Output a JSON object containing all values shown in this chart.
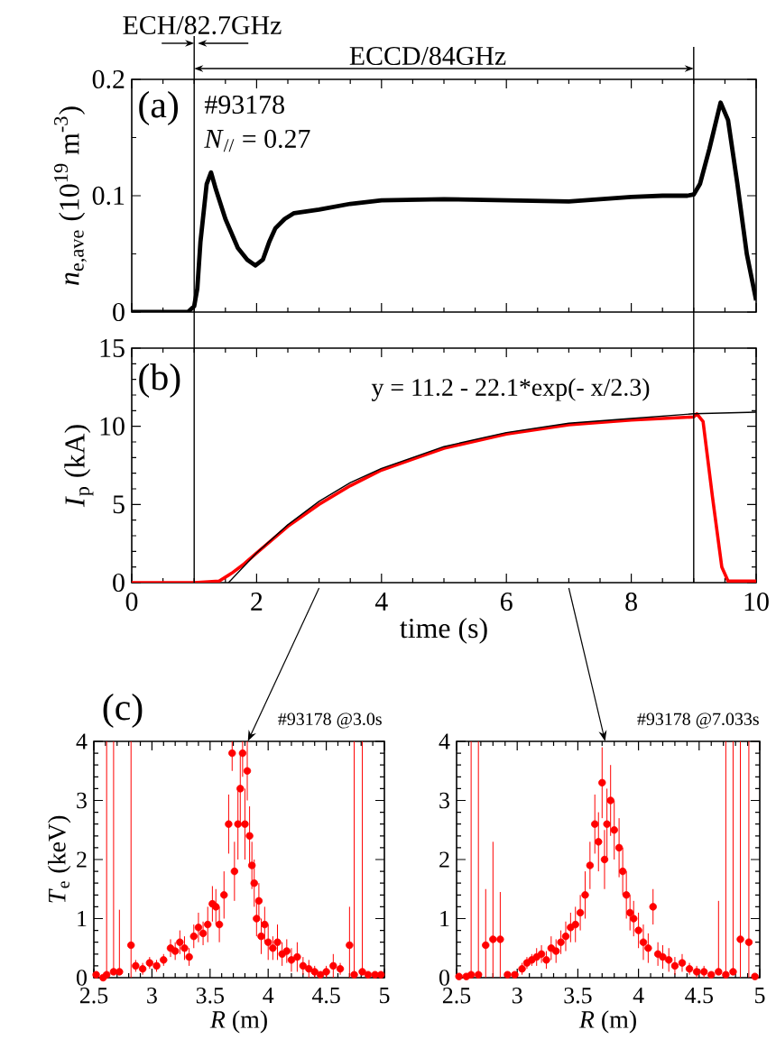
{
  "chart_data": [
    {
      "type": "line",
      "ylabel": "*n*$_{e,ave}$ (10$^{19}$ m$^{-3}$)",
      "color": "#000000",
      "x": [
        0,
        0.5,
        0.9,
        1.0,
        1.05,
        1.1,
        1.2,
        1.27,
        1.35,
        1.5,
        1.7,
        1.85,
        1.98,
        2.1,
        2.2,
        2.3,
        2.45,
        2.6,
        3.0,
        3.5,
        4.0,
        5.0,
        6.0,
        7.0,
        7.5,
        8.0,
        8.5,
        8.9,
        9.0,
        9.1,
        9.25,
        9.43,
        9.55,
        9.7,
        9.85,
        10
      ],
      "values": [
        0,
        0,
        0,
        0.005,
        0.02,
        0.06,
        0.11,
        0.12,
        0.105,
        0.08,
        0.055,
        0.045,
        0.04,
        0.045,
        0.06,
        0.072,
        0.08,
        0.085,
        0.088,
        0.093,
        0.096,
        0.097,
        0.096,
        0.095,
        0.097,
        0.099,
        0.1,
        0.1,
        0.101,
        0.11,
        0.14,
        0.18,
        0.165,
        0.11,
        0.05,
        0.01
      ],
      "xlim": [
        0,
        10
      ],
      "ylim": [
        0,
        0.2
      ],
      "xticks": [
        0,
        2,
        4,
        6,
        8,
        10
      ],
      "yticks": [
        0,
        0.1,
        0.2
      ],
      "tick_labels": "y",
      "ref_lines": [
        {
          "axis": "x",
          "value": 1
        },
        {
          "axis": "x",
          "value": 9
        }
      ],
      "annotations": [
        "ECH/82.7GHz",
        "ECCD/84GHz",
        "(a)",
        "#93178",
        "*N*$_{//}$ = 0.27"
      ]
    },
    {
      "type": "line",
      "xlabel": "time (s)",
      "ylabel": "*I*$_{p}$ (kA)",
      "series": [
        {
          "color": "#ff0000",
          "x": [
            0,
            0.5,
            1.0,
            1.4,
            1.6,
            1.8,
            2.0,
            2.5,
            3.0,
            3.5,
            4.0,
            5.0,
            6.0,
            7.0,
            8.0,
            9.0,
            9.05,
            9.15,
            9.3,
            9.45,
            9.55,
            9.7,
            10
          ],
          "values": [
            0,
            0,
            0,
            0.1,
            0.6,
            1.2,
            1.9,
            3.6,
            5.0,
            6.2,
            7.2,
            8.6,
            9.5,
            10.1,
            10.4,
            10.6,
            10.8,
            10.3,
            5.5,
            1.0,
            0.1,
            0.1,
            0.1
          ]
        },
        {
          "color": "#000000",
          "x": [
            1.55,
            2,
            2.5,
            3,
            3.5,
            4,
            5,
            6,
            7,
            8,
            9,
            10
          ],
          "values": [
            0,
            1.9,
            3.7,
            5.2,
            6.4,
            7.3,
            8.7,
            9.6,
            10.2,
            10.5,
            10.8,
            10.9
          ]
        }
      ],
      "xlim": [
        0,
        10
      ],
      "ylim": [
        0,
        15
      ],
      "xticks": [
        0,
        2,
        4,
        6,
        8,
        10
      ],
      "yticks": [
        0,
        5,
        10,
        15
      ],
      "ref_lines": [
        {
          "axis": "x",
          "value": 1
        },
        {
          "axis": "x",
          "value": 9
        }
      ],
      "annotations": [
        "(b)",
        "y = 11.2 - 22.1*exp(- x/2.3)"
      ]
    },
    {
      "type": "scatter",
      "xlabel": "*R* (m)",
      "ylabel": "*T*$_{e}$ (keV)",
      "color": "#ff0000",
      "marker": "circle",
      "x": [
        2.52,
        2.58,
        2.61,
        2.67,
        2.72,
        2.82,
        2.86,
        2.92,
        2.98,
        3.04,
        3.1,
        3.16,
        3.2,
        3.24,
        3.28,
        3.32,
        3.36,
        3.4,
        3.44,
        3.48,
        3.52,
        3.55,
        3.58,
        3.62,
        3.66,
        3.69,
        3.71,
        3.74,
        3.76,
        3.78,
        3.8,
        3.82,
        3.84,
        3.86,
        3.88,
        3.9,
        3.92,
        3.94,
        3.97,
        4.0,
        4.04,
        4.08,
        4.12,
        4.16,
        4.2,
        4.25,
        4.3,
        4.35,
        4.4,
        4.45,
        4.5,
        4.56,
        4.62,
        4.7,
        4.74,
        4.81,
        4.86,
        4.92,
        4.97
      ],
      "values": [
        0.05,
        0,
        0.05,
        0.1,
        0.1,
        0.55,
        0.2,
        0.15,
        0.25,
        0.2,
        0.3,
        0.5,
        0.45,
        0.6,
        0.5,
        0.35,
        0.7,
        0.85,
        0.75,
        0.9,
        1.25,
        1.2,
        0.9,
        1.4,
        2.6,
        3.8,
        1.8,
        2.6,
        3.2,
        3.8,
        2.6,
        3.5,
        2.4,
        1.9,
        1.6,
        1.0,
        1.3,
        0.7,
        0.9,
        0.6,
        0.5,
        0.6,
        0.4,
        0.45,
        0.3,
        0.35,
        0.2,
        0.15,
        0.1,
        0.05,
        0.1,
        0.2,
        0.15,
        0.55,
        0.05,
        0.1,
        0.05,
        0.05,
        0.05
      ],
      "errors": [
        null,
        null,
        [
          0.05,
          4
        ],
        [
          0.1,
          4
        ],
        [
          0.1,
          1.15
        ],
        [
          0,
          4
        ],
        0.1,
        0.1,
        0.1,
        0.1,
        0.1,
        0.15,
        0.15,
        0.2,
        0.2,
        0.15,
        0.2,
        0.25,
        0.2,
        0.3,
        0.3,
        0.3,
        0.3,
        0.4,
        0.5,
        [
          3.5,
          4
        ],
        0.5,
        0.6,
        0.6,
        [
          3.4,
          4
        ],
        0.6,
        0.5,
        0.5,
        0.4,
        0.4,
        0.3,
        0.3,
        0.3,
        0.3,
        0.3,
        0.2,
        0.3,
        0.2,
        0.2,
        0.2,
        0.25,
        0.15,
        0.15,
        0.1,
        null,
        0.1,
        0.2,
        0.1,
        [
          0,
          1.2
        ],
        [
          0.05,
          4
        ],
        [
          0.1,
          4
        ],
        null,
        null,
        null
      ],
      "xlim": [
        2.5,
        5
      ],
      "ylim": [
        0,
        4
      ],
      "xticks": [
        2.5,
        3,
        3.5,
        4,
        4.5,
        5
      ],
      "yticks": [
        0,
        1,
        2,
        3,
        4
      ],
      "annotations": [
        "(c)",
        "#93178 @3.0s"
      ]
    },
    {
      "type": "scatter",
      "xlabel": "*R* (m)",
      "color": "#ff0000",
      "marker": "circle",
      "x": [
        2.52,
        2.58,
        2.62,
        2.68,
        2.74,
        2.8,
        2.86,
        2.92,
        2.98,
        3.04,
        3.08,
        3.12,
        3.16,
        3.2,
        3.24,
        3.28,
        3.32,
        3.36,
        3.4,
        3.44,
        3.48,
        3.52,
        3.56,
        3.6,
        3.64,
        3.67,
        3.7,
        3.72,
        3.74,
        3.77,
        3.8,
        3.84,
        3.87,
        3.9,
        3.93,
        3.96,
        4.0,
        4.04,
        4.08,
        4.12,
        4.16,
        4.2,
        4.25,
        4.3,
        4.36,
        4.42,
        4.48,
        4.54,
        4.6,
        4.66,
        4.72,
        4.78,
        4.84,
        4.91,
        4.96
      ],
      "values": [
        0.02,
        0.02,
        0.05,
        0.05,
        0.55,
        0.65,
        0.65,
        0.05,
        0.05,
        0.15,
        0.25,
        0.3,
        0.35,
        0.4,
        0.3,
        0.5,
        0.45,
        0.6,
        0.7,
        0.85,
        0.9,
        1.1,
        1.4,
        1.9,
        2.6,
        2.3,
        3.3,
        2.0,
        2.6,
        3.0,
        2.5,
        2.2,
        1.8,
        1.4,
        1.1,
        1.0,
        0.8,
        0.6,
        0.5,
        1.2,
        0.4,
        0.35,
        0.3,
        0.2,
        0.25,
        0.15,
        0.1,
        0.1,
        0.05,
        0.1,
        0.05,
        0.1,
        0.65,
        0.6,
        0.02
      ],
      "errors": [
        null,
        null,
        [
          0.05,
          4
        ],
        [
          0.05,
          4
        ],
        [
          0,
          1.5
        ],
        [
          0,
          2.3
        ],
        [
          0,
          1.45
        ],
        null,
        null,
        0.1,
        0.1,
        0.1,
        0.15,
        0.15,
        0.15,
        0.2,
        0.2,
        0.2,
        0.25,
        0.25,
        0.3,
        0.3,
        0.4,
        0.4,
        0.5,
        0.5,
        0.6,
        0.5,
        0.6,
        0.6,
        0.5,
        0.5,
        0.4,
        0.4,
        0.3,
        0.3,
        0.3,
        0.3,
        0.25,
        0.3,
        0.2,
        0.2,
        0.2,
        0.15,
        0.15,
        0.1,
        0.1,
        0.1,
        null,
        [
          0.1,
          1.3
        ],
        [
          0.05,
          4
        ],
        [
          0.1,
          4
        ],
        [
          0,
          4
        ],
        [
          0,
          4
        ],
        null
      ],
      "xlim": [
        2.5,
        5
      ],
      "ylim": [
        0,
        4
      ],
      "xticks": [
        2.5,
        3,
        3.5,
        4,
        4.5,
        5
      ],
      "yticks": [
        0,
        1,
        2,
        3,
        4
      ],
      "annotations": [
        "#93178 @7.033s"
      ]
    }
  ]
}
